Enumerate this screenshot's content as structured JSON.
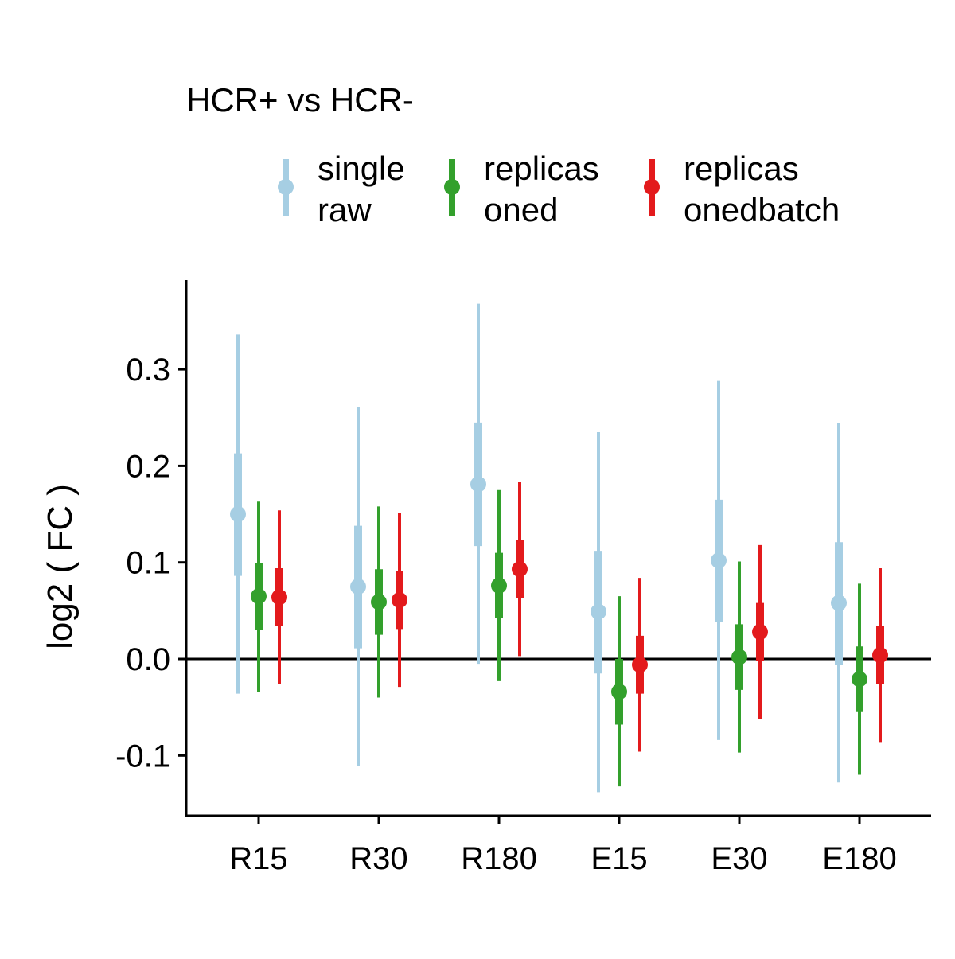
{
  "chart_data": {
    "type": "pointrange",
    "legend_title": "HCR+ vs HCR-",
    "ylabel": "log2 ( FC )",
    "xlabel": "",
    "categories": [
      "R15",
      "R30",
      "R180",
      "E15",
      "E30",
      "E180"
    ],
    "ylim": [
      -0.16,
      0.39
    ],
    "yticks": [
      -0.1,
      0.0,
      0.1,
      0.2,
      0.3
    ],
    "ytick_labels": [
      "-0.1",
      "0.0",
      "0.1",
      "0.2",
      "0.3"
    ],
    "reference_line": 0,
    "legend_position": "top",
    "grid": false,
    "series": [
      {
        "name_lines": [
          "single",
          "raw"
        ],
        "color": "#a6cee3",
        "estimate": [
          0.15,
          0.075,
          0.181,
          0.049,
          0.102,
          0.058
        ],
        "inner_low": [
          0.086,
          0.011,
          0.117,
          -0.015,
          0.038,
          -0.006
        ],
        "inner_high": [
          0.213,
          0.138,
          0.245,
          0.112,
          0.165,
          0.121
        ],
        "outer_low": [
          -0.036,
          -0.111,
          -0.005,
          -0.138,
          -0.084,
          -0.128
        ],
        "outer_high": [
          0.336,
          0.261,
          0.368,
          0.235,
          0.288,
          0.244
        ]
      },
      {
        "name_lines": [
          "replicas",
          "oned"
        ],
        "color": "#33a02c",
        "estimate": [
          0.065,
          0.059,
          0.076,
          -0.034,
          0.002,
          -0.021
        ],
        "inner_low": [
          0.03,
          0.025,
          0.042,
          -0.068,
          -0.032,
          -0.055
        ],
        "inner_high": [
          0.099,
          0.093,
          0.11,
          0.0,
          0.036,
          0.013
        ],
        "outer_low": [
          -0.034,
          -0.04,
          -0.023,
          -0.132,
          -0.097,
          -0.12
        ],
        "outer_high": [
          0.163,
          0.158,
          0.175,
          0.065,
          0.101,
          0.078
        ]
      },
      {
        "name_lines": [
          "replicas",
          "onedbatch"
        ],
        "color": "#e31a1c",
        "estimate": [
          0.064,
          0.061,
          0.093,
          -0.006,
          0.028,
          0.004
        ],
        "inner_low": [
          0.034,
          0.031,
          0.063,
          -0.036,
          -0.002,
          -0.026
        ],
        "inner_high": [
          0.094,
          0.091,
          0.123,
          0.024,
          0.058,
          0.034
        ],
        "outer_low": [
          -0.026,
          -0.029,
          0.003,
          -0.096,
          -0.062,
          -0.086
        ],
        "outer_high": [
          0.154,
          0.151,
          0.183,
          0.084,
          0.118,
          0.094
        ]
      }
    ]
  }
}
